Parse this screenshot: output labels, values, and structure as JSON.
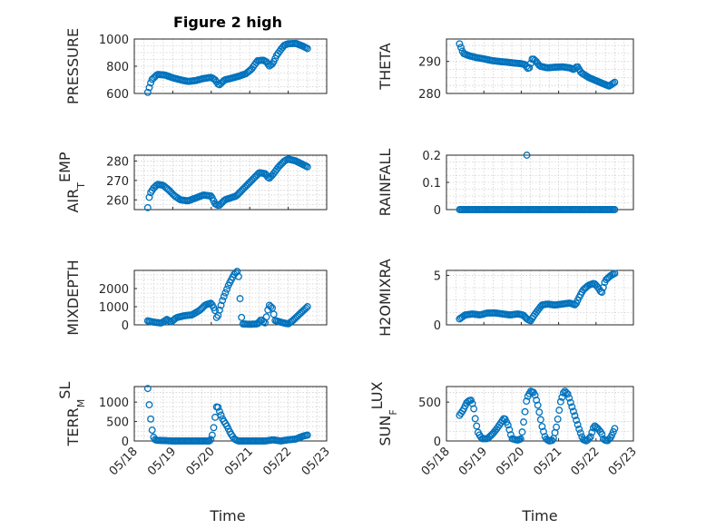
{
  "figure": {
    "title": "Figure 2 high",
    "xlabel": "Time"
  },
  "chart_data": [
    {
      "type": "scatter",
      "ylabel": "PRESSURE",
      "ylim": [
        600,
        1000
      ],
      "yticks": [
        "600",
        "800",
        "1000"
      ],
      "yticks_num": [
        600,
        800,
        1000
      ],
      "xticks": [],
      "grid": true,
      "marker_color": "#0072BD",
      "anchors": [
        [
          0.35,
          608
        ],
        [
          0.45,
          700
        ],
        [
          0.6,
          740
        ],
        [
          0.8,
          735
        ],
        [
          1.0,
          715
        ],
        [
          1.2,
          700
        ],
        [
          1.4,
          688
        ],
        [
          1.6,
          695
        ],
        [
          1.8,
          710
        ],
        [
          2.0,
          718
        ],
        [
          2.1,
          700
        ],
        [
          2.2,
          660
        ],
        [
          2.35,
          700
        ],
        [
          2.5,
          710
        ],
        [
          2.7,
          725
        ],
        [
          2.9,
          745
        ],
        [
          3.05,
          780
        ],
        [
          3.2,
          840
        ],
        [
          3.35,
          845
        ],
        [
          3.45,
          830
        ],
        [
          3.5,
          800
        ],
        [
          3.6,
          820
        ],
        [
          3.7,
          880
        ],
        [
          3.8,
          920
        ],
        [
          3.9,
          955
        ],
        [
          4.0,
          965
        ],
        [
          4.2,
          968
        ],
        [
          4.4,
          945
        ],
        [
          4.5,
          930
        ]
      ]
    },
    {
      "type": "scatter",
      "ylabel": "THETA",
      "ylim": [
        280,
        297
      ],
      "yticks": [
        "280",
        "290"
      ],
      "yticks_num": [
        280,
        290
      ],
      "xticks": [],
      "grid": true,
      "marker_color": "#0072BD",
      "anchors": [
        [
          0.35,
          295.5
        ],
        [
          0.45,
          292.5
        ],
        [
          0.6,
          291.8
        ],
        [
          0.8,
          291.2
        ],
        [
          1.0,
          290.8
        ],
        [
          1.2,
          290.3
        ],
        [
          1.4,
          290.0
        ],
        [
          1.6,
          289.8
        ],
        [
          1.8,
          289.5
        ],
        [
          2.0,
          289.3
        ],
        [
          2.1,
          289.0
        ],
        [
          2.2,
          287.5
        ],
        [
          2.3,
          291.0
        ],
        [
          2.4,
          290.0
        ],
        [
          2.5,
          288.5
        ],
        [
          2.7,
          288.0
        ],
        [
          2.9,
          288.2
        ],
        [
          3.1,
          288.3
        ],
        [
          3.3,
          288.0
        ],
        [
          3.4,
          287.5
        ],
        [
          3.5,
          288.5
        ],
        [
          3.6,
          286.5
        ],
        [
          3.8,
          285.0
        ],
        [
          4.0,
          284.0
        ],
        [
          4.2,
          283.0
        ],
        [
          4.35,
          282.3
        ],
        [
          4.5,
          283.5
        ]
      ]
    },
    {
      "type": "scatter",
      "ylabel": "AIR_TEMP",
      "ylabel_main": "AIR",
      "ylabel_sub": "T",
      "ylabel_rest": "EMP",
      "ylim": [
        255,
        283
      ],
      "yticks": [
        "260",
        "270",
        "280"
      ],
      "yticks_num": [
        260,
        270,
        280
      ],
      "xticks": [],
      "grid": true,
      "marker_color": "#0072BD",
      "anchors": [
        [
          0.35,
          256
        ],
        [
          0.4,
          263
        ],
        [
          0.5,
          266
        ],
        [
          0.6,
          268
        ],
        [
          0.75,
          267.5
        ],
        [
          0.9,
          265
        ],
        [
          1.05,
          262
        ],
        [
          1.2,
          260
        ],
        [
          1.4,
          259.5
        ],
        [
          1.6,
          261
        ],
        [
          1.8,
          262.5
        ],
        [
          2.0,
          262
        ],
        [
          2.1,
          258
        ],
        [
          2.2,
          257
        ],
        [
          2.35,
          260
        ],
        [
          2.5,
          261
        ],
        [
          2.65,
          262
        ],
        [
          2.8,
          265
        ],
        [
          2.95,
          268
        ],
        [
          3.1,
          271
        ],
        [
          3.25,
          274
        ],
        [
          3.4,
          273.5
        ],
        [
          3.5,
          271
        ],
        [
          3.6,
          273
        ],
        [
          3.75,
          277
        ],
        [
          3.9,
          280
        ],
        [
          4.0,
          281
        ],
        [
          4.2,
          280
        ],
        [
          4.35,
          278.5
        ],
        [
          4.5,
          277
        ]
      ]
    },
    {
      "type": "scatter",
      "ylabel": "RAINFALL",
      "ylim": [
        0,
        0.2
      ],
      "yticks": [
        "0",
        "0.1",
        "0.2"
      ],
      "yticks_num": [
        0,
        0.1,
        0.2
      ],
      "xticks": [],
      "grid": true,
      "marker_color": "#0072BD",
      "anchors": [
        [
          0.35,
          0
        ],
        [
          4.5,
          0
        ]
      ],
      "extra_points": [
        [
          2.15,
          0.2
        ]
      ]
    },
    {
      "type": "scatter",
      "ylabel": "MIXDEPTH",
      "ylim": [
        0,
        3000
      ],
      "yticks": [
        "0",
        "1000",
        "2000"
      ],
      "yticks_num": [
        0,
        1000,
        2000
      ],
      "xticks": [],
      "grid": true,
      "marker_color": "#0072BD",
      "anchors": [
        [
          0.35,
          220
        ],
        [
          0.5,
          150
        ],
        [
          0.7,
          100
        ],
        [
          0.85,
          300
        ],
        [
          0.95,
          150
        ],
        [
          1.1,
          400
        ],
        [
          1.3,
          500
        ],
        [
          1.5,
          550
        ],
        [
          1.7,
          800
        ],
        [
          1.85,
          1100
        ],
        [
          2.0,
          1200
        ],
        [
          2.1,
          800
        ],
        [
          2.15,
          300
        ],
        [
          2.2,
          700
        ],
        [
          2.3,
          1400
        ],
        [
          2.45,
          2200
        ],
        [
          2.6,
          2800
        ],
        [
          2.7,
          3000
        ],
        [
          2.75,
          1400
        ],
        [
          2.8,
          50
        ],
        [
          3.0,
          30
        ],
        [
          3.2,
          50
        ],
        [
          3.3,
          300
        ],
        [
          3.4,
          100
        ],
        [
          3.5,
          1100
        ],
        [
          3.6,
          900
        ],
        [
          3.65,
          250
        ],
        [
          3.8,
          150
        ],
        [
          4.0,
          50
        ],
        [
          4.1,
          200
        ],
        [
          4.2,
          400
        ],
        [
          4.35,
          700
        ],
        [
          4.5,
          1000
        ]
      ]
    },
    {
      "type": "scatter",
      "ylabel": "H2OMIXRA",
      "ylim": [
        0,
        5.5
      ],
      "yticks": [
        "0",
        "5"
      ],
      "yticks_num": [
        0,
        5
      ],
      "xticks": [],
      "grid": true,
      "marker_color": "#0072BD",
      "anchors": [
        [
          0.35,
          0.6
        ],
        [
          0.5,
          1.0
        ],
        [
          0.7,
          1.1
        ],
        [
          0.9,
          1.0
        ],
        [
          1.1,
          1.2
        ],
        [
          1.3,
          1.2
        ],
        [
          1.5,
          1.1
        ],
        [
          1.7,
          1.0
        ],
        [
          1.9,
          1.1
        ],
        [
          2.05,
          1.0
        ],
        [
          2.15,
          0.6
        ],
        [
          2.25,
          0.4
        ],
        [
          2.35,
          1.0
        ],
        [
          2.45,
          1.5
        ],
        [
          2.55,
          2.0
        ],
        [
          2.7,
          2.1
        ],
        [
          2.9,
          2.0
        ],
        [
          3.1,
          2.1
        ],
        [
          3.3,
          2.2
        ],
        [
          3.45,
          2.0
        ],
        [
          3.55,
          2.8
        ],
        [
          3.65,
          3.5
        ],
        [
          3.8,
          4.0
        ],
        [
          3.95,
          4.2
        ],
        [
          4.05,
          3.8
        ],
        [
          4.15,
          3.2
        ],
        [
          4.25,
          4.5
        ],
        [
          4.4,
          5.0
        ],
        [
          4.5,
          5.2
        ]
      ]
    },
    {
      "type": "scatter",
      "ylabel": "TERR_MSL",
      "ylabel_main": "TERR",
      "ylabel_sub": "M",
      "ylabel_rest": "SL",
      "ylim": [
        0,
        1400
      ],
      "yticks": [
        "0",
        "500",
        "1000"
      ],
      "yticks_num": [
        0,
        500,
        1000
      ],
      "xticks": [
        "05/18",
        "05/19",
        "05/20",
        "05/21",
        "05/22",
        "05/23"
      ],
      "xticks_num": [
        0,
        1,
        2,
        3,
        4,
        5
      ],
      "grid": true,
      "marker_color": "#0072BD",
      "anchors": [
        [
          0.35,
          1350
        ],
        [
          0.4,
          800
        ],
        [
          0.45,
          350
        ],
        [
          0.5,
          100
        ],
        [
          0.55,
          20
        ],
        [
          1.0,
          0
        ],
        [
          1.5,
          0
        ],
        [
          1.95,
          0
        ],
        [
          2.0,
          50
        ],
        [
          2.05,
          250
        ],
        [
          2.1,
          600
        ],
        [
          2.15,
          950
        ],
        [
          2.2,
          800
        ],
        [
          2.3,
          550
        ],
        [
          2.4,
          400
        ],
        [
          2.5,
          200
        ],
        [
          2.6,
          50
        ],
        [
          2.7,
          0
        ],
        [
          3.0,
          0
        ],
        [
          3.4,
          0
        ],
        [
          3.6,
          30
        ],
        [
          3.8,
          0
        ],
        [
          4.0,
          30
        ],
        [
          4.2,
          50
        ],
        [
          4.4,
          130
        ],
        [
          4.5,
          150
        ]
      ]
    },
    {
      "type": "scatter",
      "ylabel": "SUN_FLUX",
      "ylabel_main": "SUN",
      "ylabel_sub": "F",
      "ylabel_rest": "LUX",
      "ylim": [
        0,
        700
      ],
      "yticks": [
        "0",
        "500"
      ],
      "yticks_num": [
        0,
        500
      ],
      "xticks": [
        "05/18",
        "05/19",
        "05/20",
        "05/21",
        "05/22",
        "05/23"
      ],
      "xticks_num": [
        0,
        1,
        2,
        3,
        4,
        5
      ],
      "grid": true,
      "marker_color": "#0072BD",
      "anchors": [
        [
          0.35,
          330
        ],
        [
          0.45,
          400
        ],
        [
          0.55,
          500
        ],
        [
          0.65,
          530
        ],
        [
          0.72,
          450
        ],
        [
          0.78,
          250
        ],
        [
          0.85,
          100
        ],
        [
          0.95,
          30
        ],
        [
          1.1,
          30
        ],
        [
          1.25,
          100
        ],
        [
          1.35,
          160
        ],
        [
          1.45,
          230
        ],
        [
          1.55,
          300
        ],
        [
          1.65,
          200
        ],
        [
          1.75,
          30
        ],
        [
          1.9,
          10
        ],
        [
          2.0,
          30
        ],
        [
          2.08,
          300
        ],
        [
          2.15,
          550
        ],
        [
          2.25,
          640
        ],
        [
          2.35,
          620
        ],
        [
          2.45,
          450
        ],
        [
          2.55,
          200
        ],
        [
          2.65,
          30
        ],
        [
          2.75,
          0
        ],
        [
          2.85,
          10
        ],
        [
          2.95,
          200
        ],
        [
          3.05,
          500
        ],
        [
          3.15,
          650
        ],
        [
          3.25,
          600
        ],
        [
          3.35,
          450
        ],
        [
          3.45,
          300
        ],
        [
          3.55,
          150
        ],
        [
          3.65,
          20
        ],
        [
          3.75,
          0
        ],
        [
          3.85,
          50
        ],
        [
          3.95,
          200
        ],
        [
          4.05,
          160
        ],
        [
          4.15,
          100
        ],
        [
          4.2,
          20
        ],
        [
          4.3,
          0
        ],
        [
          4.4,
          50
        ],
        [
          4.5,
          160
        ]
      ]
    }
  ]
}
